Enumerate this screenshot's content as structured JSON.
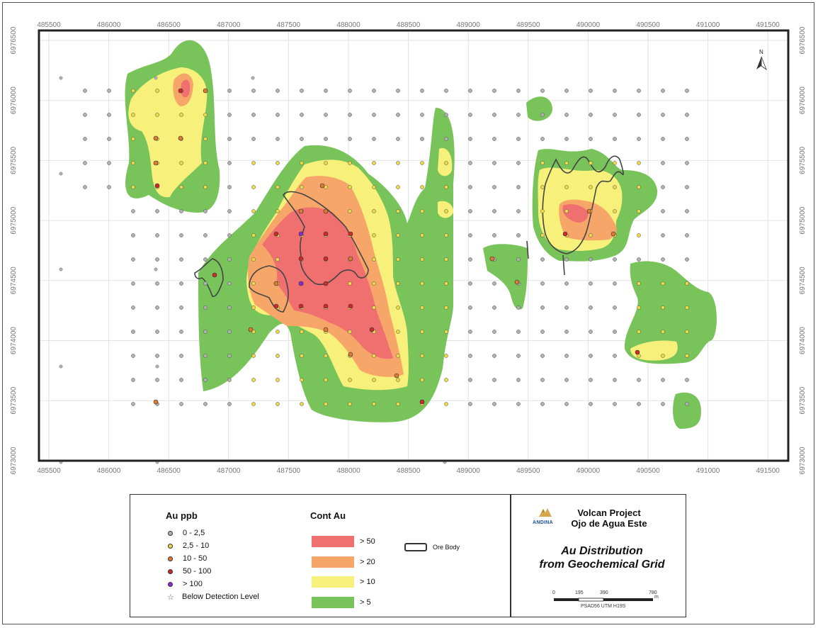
{
  "map": {
    "x_ticks": [
      "485500",
      "486000",
      "486500",
      "487000",
      "487500",
      "488000",
      "488500",
      "489000",
      "489500",
      "490000",
      "490500",
      "491000",
      "491500"
    ],
    "y_ticks": [
      "6976500",
      "6976000",
      "6975500",
      "6975000",
      "6974500",
      "6974000",
      "6973500",
      "6973000"
    ],
    "north_label": "N"
  },
  "legend": {
    "au_title": "Au ppb",
    "au_classes": [
      {
        "label": "0 - 2,5",
        "color": "#b0b0b0"
      },
      {
        "label": "2,5 - 10",
        "color": "#e8d84a"
      },
      {
        "label": "10 - 50",
        "color": "#e07a30"
      },
      {
        "label": "50 - 100",
        "color": "#d02a2a"
      },
      {
        "label": "> 100",
        "color": "#8a2ad0"
      }
    ],
    "below_detection_label": "Below Detection Level",
    "cont_title": "Cont Au",
    "cont_classes": [
      {
        "label": "> 50",
        "color": "#f07070"
      },
      {
        "label": "> 20",
        "color": "#f7a66a"
      },
      {
        "label": "> 10",
        "color": "#f7f07a"
      },
      {
        "label": "> 5",
        "color": "#79c35b"
      }
    ],
    "ore_body_label": "Ore Body"
  },
  "title_block": {
    "logo_text": "ANDINA",
    "project_line1": "Volcan Project",
    "project_line2": "Ojo de Agua Este",
    "title_line1": "Au Distribution",
    "title_line2": "from Geochemical Grid",
    "scale_labels": [
      "0",
      "195",
      "390",
      "780"
    ],
    "scale_unit": "m",
    "projection": "PSAD56 UTM H19S"
  }
}
